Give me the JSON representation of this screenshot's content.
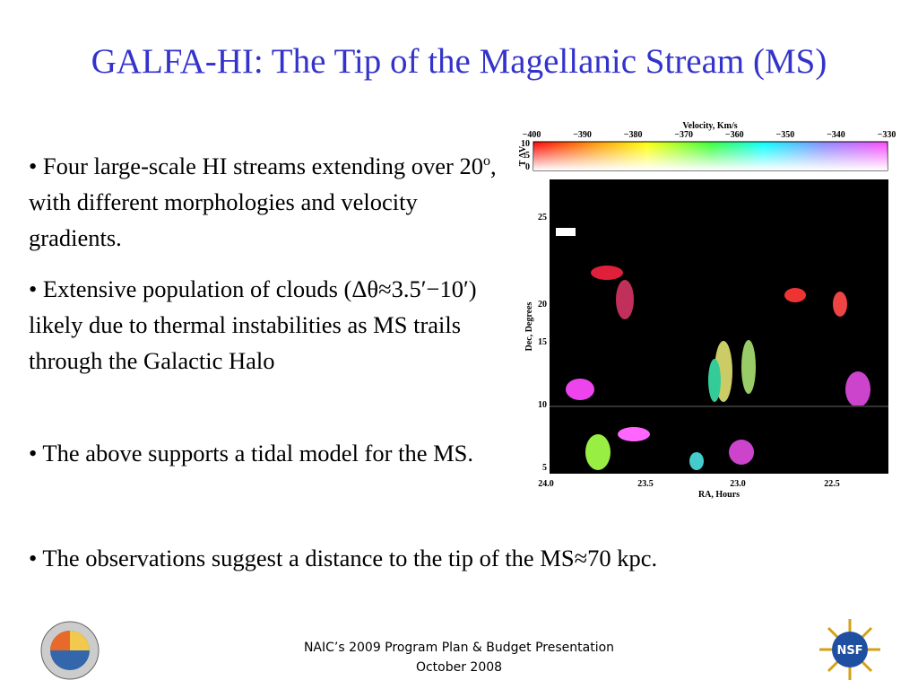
{
  "title": "GALFA-HI: The Tip of the Magellanic Stream (MS)",
  "bullets": [
    {
      "before": "• Four large-scale HI streams extending over 20",
      "sup": "o",
      "after": ", with different morphologies and velocity gradients."
    },
    {
      "text": "• Extensive population of clouds (Δθ≈3.5′−10′) likely due to thermal instabilities as MS trails through the Galactic Halo"
    },
    {
      "text": "• The above supports a tidal model for the MS."
    }
  ],
  "conclusion": "• The observations suggest a distance to the tip of the MS≈70 kpc.",
  "figure": {
    "colorbar_label": "Velocity, Km/s",
    "colorbar_ticks": [
      "−400",
      "−390",
      "−380",
      "−370",
      "−360",
      "−350",
      "−340",
      "−330"
    ],
    "intensity_label": "T ΔV",
    "intensity_ticks": [
      "10",
      "5",
      "0"
    ],
    "y_label": "Dec, Degrees",
    "y_ticks": [
      "25",
      "20",
      "15",
      "10",
      "5"
    ],
    "x_label": "RA, Hours",
    "x_ticks": [
      "24.0",
      "23.5",
      "23.0",
      "22.5"
    ]
  },
  "footer": {
    "line1": "NAIC’s 2009 Program Plan & Budget Presentation",
    "line2": "October 2008"
  }
}
